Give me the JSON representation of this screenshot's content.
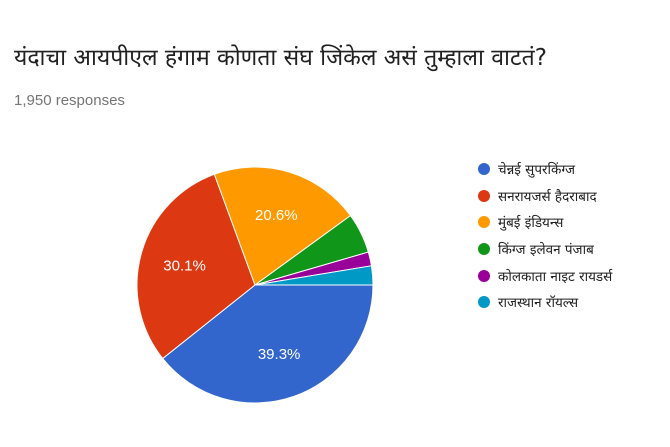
{
  "title": "यंदाचा आयपीएल हंगाम कोणता संघ जिंकेल असं तुम्हाला वाटतं?",
  "responses": "1,950 responses",
  "chart_data": {
    "type": "pie",
    "title": "यंदाचा आयपीएल हंगाम कोणता संघ जिंकेल असं तुम्हाला वाटतं?",
    "legend_position": "right",
    "slices": [
      {
        "label": "चेन्नई सुपरकिंग्ज",
        "value": 39.3,
        "display": "39.3%",
        "color": "#3366cc"
      },
      {
        "label": "सनरायजर्स हैदराबाद",
        "value": 30.1,
        "display": "30.1%",
        "color": "#dc3912"
      },
      {
        "label": "मुंबई इंडियन्स",
        "value": 20.6,
        "display": "20.6%",
        "color": "#ff9900"
      },
      {
        "label": "किंग्ज इलेवन पंजाब",
        "value": 5.5,
        "display": "",
        "color": "#109618"
      },
      {
        "label": "कोलकाता नाइट रायडर्स",
        "value": 1.9,
        "display": "",
        "color": "#990099"
      },
      {
        "label": "राजस्थान रॉयल्स",
        "value": 2.6,
        "display": "",
        "color": "#0099c6"
      }
    ]
  }
}
